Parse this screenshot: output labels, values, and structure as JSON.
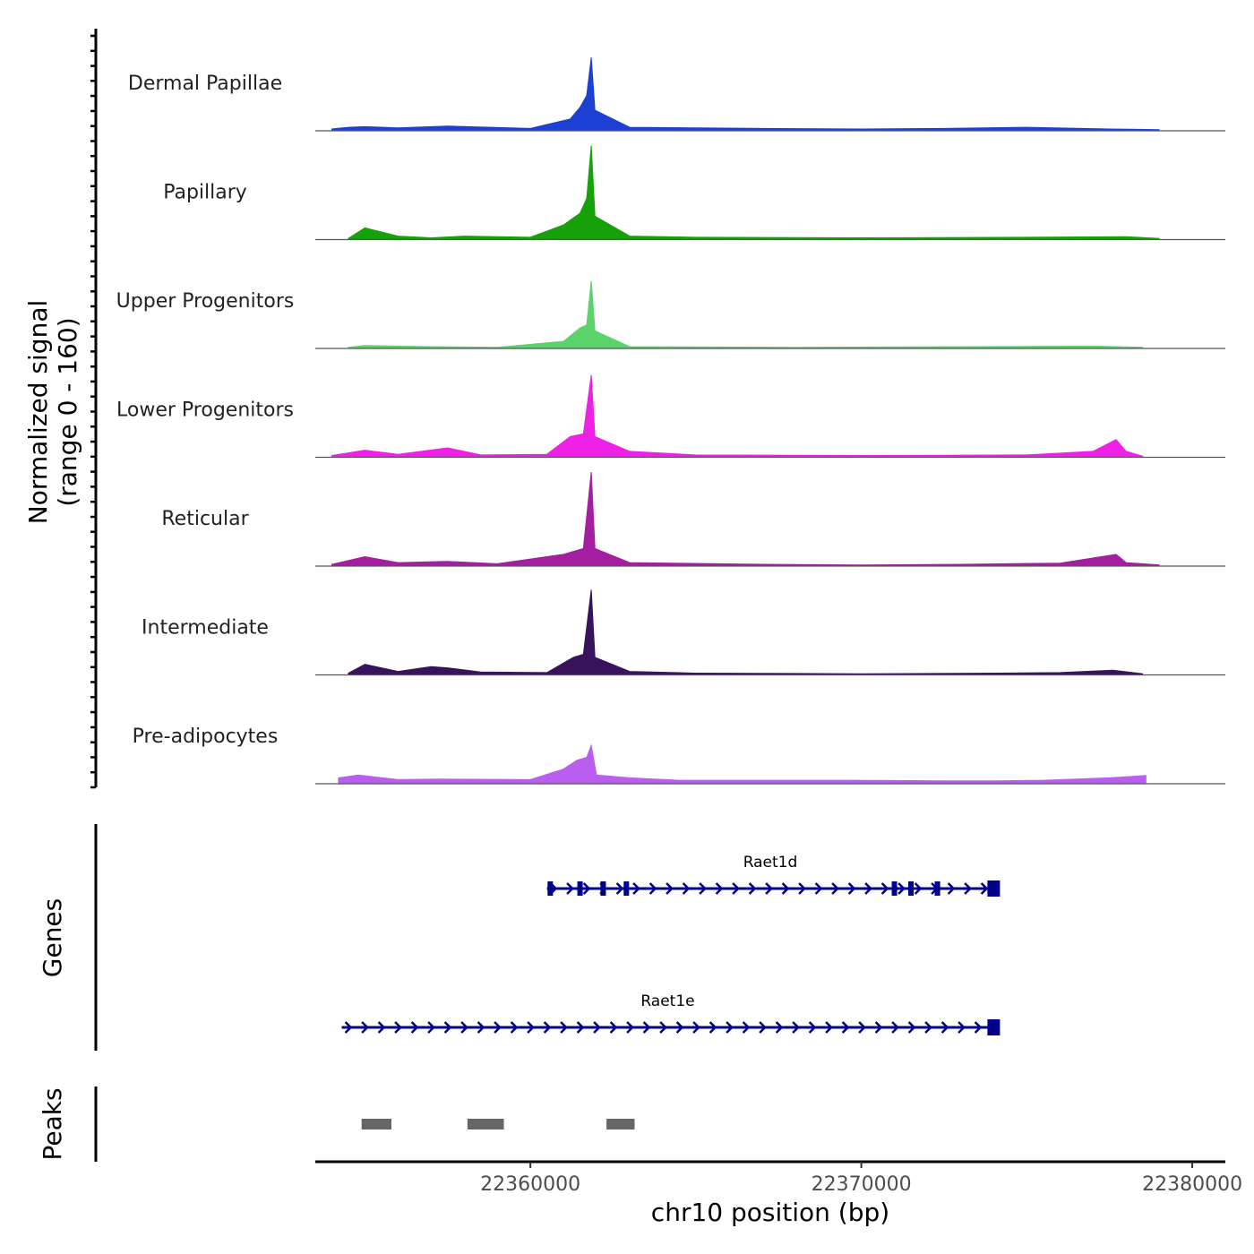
{
  "chart_data": {
    "type": "area",
    "title": "",
    "chromosome": "chr10",
    "xlabel": "chr10 position (bp)",
    "ylabel": "Normalized signal",
    "ylabel_range": "(range 0 - 160)",
    "ylim": [
      0,
      160
    ],
    "xlim": [
      22353500,
      22381000
    ],
    "x_ticks": [
      22360000,
      22370000,
      22380000
    ],
    "x_tick_labels": [
      "22360000",
      "22370000",
      "22380000"
    ],
    "series": [
      {
        "name": "Dermal Papillae",
        "color": "#1c3fd4",
        "points": [
          [
            22354000,
            3
          ],
          [
            22354500,
            6
          ],
          [
            22355000,
            7
          ],
          [
            22356000,
            5
          ],
          [
            22357500,
            8
          ],
          [
            22360000,
            4
          ],
          [
            22361200,
            20
          ],
          [
            22361500,
            40
          ],
          [
            22361700,
            60
          ],
          [
            22361840,
            125
          ],
          [
            22361950,
            35
          ],
          [
            22363000,
            6
          ],
          [
            22365000,
            5
          ],
          [
            22367000,
            4
          ],
          [
            22370000,
            3
          ],
          [
            22372500,
            4
          ],
          [
            22375000,
            6
          ],
          [
            22377500,
            3
          ],
          [
            22379000,
            2
          ]
        ]
      },
      {
        "name": "Papillary",
        "color": "#16a10a",
        "points": [
          [
            22354500,
            2
          ],
          [
            22355000,
            20
          ],
          [
            22356000,
            6
          ],
          [
            22357000,
            3
          ],
          [
            22358000,
            6
          ],
          [
            22360000,
            4
          ],
          [
            22361000,
            25
          ],
          [
            22361500,
            45
          ],
          [
            22361700,
            70
          ],
          [
            22361840,
            160
          ],
          [
            22361950,
            40
          ],
          [
            22363000,
            6
          ],
          [
            22365000,
            4
          ],
          [
            22370000,
            3
          ],
          [
            22375000,
            4
          ],
          [
            22378000,
            5
          ],
          [
            22379000,
            2
          ]
        ]
      },
      {
        "name": "Upper Progenitors",
        "color": "#5ad46a",
        "points": [
          [
            22354500,
            2
          ],
          [
            22355000,
            5
          ],
          [
            22357000,
            3
          ],
          [
            22359000,
            2
          ],
          [
            22361000,
            12
          ],
          [
            22361500,
            35
          ],
          [
            22361700,
            40
          ],
          [
            22361840,
            115
          ],
          [
            22361950,
            30
          ],
          [
            22363000,
            3
          ],
          [
            22368000,
            2
          ],
          [
            22377000,
            4
          ],
          [
            22378500,
            2
          ]
        ]
      },
      {
        "name": "Lower Progenitors",
        "color": "#ef21e6",
        "points": [
          [
            22354000,
            3
          ],
          [
            22355000,
            12
          ],
          [
            22356000,
            5
          ],
          [
            22357500,
            16
          ],
          [
            22358500,
            4
          ],
          [
            22360500,
            5
          ],
          [
            22361200,
            35
          ],
          [
            22361600,
            40
          ],
          [
            22361840,
            140
          ],
          [
            22361950,
            35
          ],
          [
            22363000,
            10
          ],
          [
            22365000,
            4
          ],
          [
            22370000,
            3
          ],
          [
            22375000,
            4
          ],
          [
            22377000,
            10
          ],
          [
            22377700,
            30
          ],
          [
            22378000,
            10
          ],
          [
            22378500,
            2
          ]
        ]
      },
      {
        "name": "Reticular",
        "color": "#a31ea0",
        "points": [
          [
            22354000,
            3
          ],
          [
            22355000,
            16
          ],
          [
            22356000,
            6
          ],
          [
            22357500,
            8
          ],
          [
            22359000,
            4
          ],
          [
            22361000,
            20
          ],
          [
            22361600,
            30
          ],
          [
            22361840,
            160
          ],
          [
            22361950,
            30
          ],
          [
            22363000,
            6
          ],
          [
            22367000,
            3
          ],
          [
            22370000,
            2
          ],
          [
            22373000,
            3
          ],
          [
            22376000,
            5
          ],
          [
            22377700,
            20
          ],
          [
            22378000,
            6
          ],
          [
            22379000,
            2
          ]
        ]
      },
      {
        "name": "Intermediate",
        "color": "#38135c",
        "points": [
          [
            22354500,
            3
          ],
          [
            22355000,
            18
          ],
          [
            22356000,
            6
          ],
          [
            22357000,
            14
          ],
          [
            22357500,
            12
          ],
          [
            22358500,
            5
          ],
          [
            22360500,
            4
          ],
          [
            22361300,
            30
          ],
          [
            22361600,
            35
          ],
          [
            22361840,
            145
          ],
          [
            22361950,
            30
          ],
          [
            22363000,
            6
          ],
          [
            22365000,
            3
          ],
          [
            22370000,
            2
          ],
          [
            22374000,
            3
          ],
          [
            22376000,
            4
          ],
          [
            22377600,
            8
          ],
          [
            22378500,
            2
          ]
        ]
      },
      {
        "name": "Pre-adipocytes",
        "color": "#bb5ef0",
        "points": [
          [
            22354200,
            10
          ],
          [
            22354800,
            15
          ],
          [
            22356000,
            7
          ],
          [
            22357200,
            8
          ],
          [
            22360000,
            7
          ],
          [
            22361000,
            25
          ],
          [
            22361400,
            40
          ],
          [
            22361700,
            45
          ],
          [
            22361840,
            65
          ],
          [
            22362000,
            15
          ],
          [
            22363000,
            10
          ],
          [
            22364500,
            6
          ],
          [
            22369500,
            6
          ],
          [
            22372500,
            5
          ],
          [
            22374000,
            5
          ],
          [
            22375500,
            6
          ],
          [
            22377500,
            10
          ],
          [
            22378600,
            14
          ]
        ]
      }
    ],
    "genes": [
      {
        "name": "Raet1d",
        "start": 22360500,
        "end": 22374000,
        "strand": "+",
        "exons": [
          22360600,
          22361500,
          22362200,
          22362900,
          22371000,
          22371500,
          22372300
        ]
      },
      {
        "name": "Raet1e",
        "start": 22354300,
        "end": 22374000,
        "strand": "+",
        "exons": []
      }
    ],
    "peaks": [
      {
        "start": 22354900,
        "end": 22355800
      },
      {
        "start": 22358100,
        "end": 22359200
      },
      {
        "start": 22362300,
        "end": 22363150
      }
    ],
    "panel_labels": {
      "genes": "Genes",
      "peaks": "Peaks"
    },
    "gene_color": "#00008b",
    "peak_color": "#666666",
    "baseline_color": "#555555"
  }
}
